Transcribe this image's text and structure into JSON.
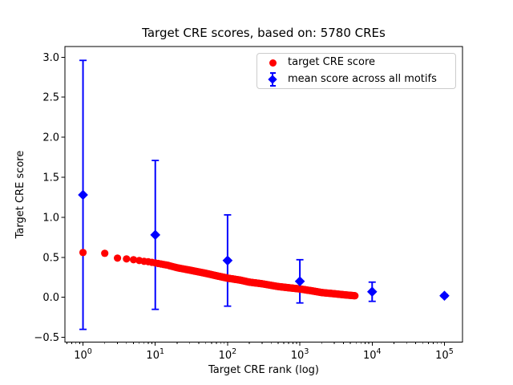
{
  "chart_data": {
    "type": "scatter",
    "title": "Target CRE scores, based on: 5780 CREs",
    "xlabel": "Target CRE rank (log)",
    "ylabel": "Target CRE score",
    "x_scale": "log",
    "y_scale": "linear",
    "xlim_log10": [
      -0.25,
      5.25
    ],
    "ylim": [
      -0.559,
      3.133
    ],
    "grid": false,
    "x_major_ticks": [
      {
        "value": 1,
        "label_base": "10",
        "label_exp": "0"
      },
      {
        "value": 10,
        "label_base": "10",
        "label_exp": "1"
      },
      {
        "value": 100,
        "label_base": "10",
        "label_exp": "2"
      },
      {
        "value": 1000,
        "label_base": "10",
        "label_exp": "3"
      },
      {
        "value": 10000,
        "label_base": "10",
        "label_exp": "4"
      },
      {
        "value": 100000,
        "label_base": "10",
        "label_exp": "5"
      }
    ],
    "x_minor_multiples": [
      2,
      3,
      4,
      5,
      6,
      7,
      8,
      9
    ],
    "y_ticks": [
      {
        "value": 3.0,
        "label": "3.0"
      },
      {
        "value": 2.5,
        "label": "2.5"
      },
      {
        "value": 2.0,
        "label": "2.0"
      },
      {
        "value": 1.5,
        "label": "1.5"
      },
      {
        "value": 1.0,
        "label": "1.0"
      },
      {
        "value": 0.5,
        "label": "0.5"
      },
      {
        "value": 0.0,
        "label": "0.0"
      },
      {
        "value": -0.5,
        "label": "−0.5"
      }
    ],
    "legend": {
      "position": "upper right"
    },
    "series": [
      {
        "name": "target CRE score",
        "type": "scatter",
        "marker": "circle",
        "color": "#ff0000",
        "n_points": 5780,
        "rank_range": [
          1,
          5780
        ],
        "anchor_points": [
          [
            1,
            0.56
          ],
          [
            2,
            0.55
          ],
          [
            3,
            0.49
          ],
          [
            4,
            0.48
          ],
          [
            5,
            0.47
          ],
          [
            6,
            0.46
          ],
          [
            7,
            0.45
          ],
          [
            8,
            0.445
          ],
          [
            10,
            0.43
          ],
          [
            15,
            0.4
          ],
          [
            20,
            0.37
          ],
          [
            30,
            0.34
          ],
          [
            50,
            0.3
          ],
          [
            70,
            0.27
          ],
          [
            100,
            0.24
          ],
          [
            150,
            0.215
          ],
          [
            200,
            0.19
          ],
          [
            300,
            0.17
          ],
          [
            500,
            0.135
          ],
          [
            700,
            0.12
          ],
          [
            1000,
            0.105
          ],
          [
            1500,
            0.08
          ],
          [
            2000,
            0.06
          ],
          [
            3000,
            0.045
          ],
          [
            4000,
            0.033
          ],
          [
            5000,
            0.025
          ],
          [
            5780,
            0.02
          ]
        ]
      },
      {
        "name": "mean score across all motifs",
        "type": "errorbar",
        "marker": "diamond",
        "color": "#0000ff",
        "x": [
          1,
          10,
          100,
          1000,
          10000,
          100000
        ],
        "y": [
          1.28,
          0.78,
          0.46,
          0.2,
          0.07,
          0.02
        ],
        "yerr": [
          1.68,
          0.93,
          0.57,
          0.27,
          0.12,
          0.015
        ]
      }
    ]
  }
}
